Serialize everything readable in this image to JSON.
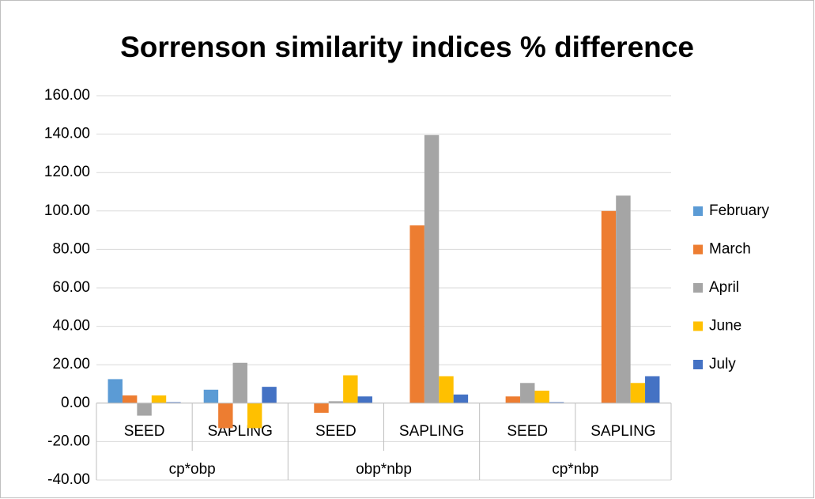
{
  "chart_data": {
    "type": "bar",
    "title": "Sorrenson similarity indices % difference",
    "categories": [
      "SEED",
      "SAPLING",
      "SEED",
      "SAPLING",
      "SEED",
      "SAPLING"
    ],
    "groups": [
      "cp*obp",
      "obp*nbp",
      "cp*nbp"
    ],
    "series": [
      {
        "name": "February",
        "color": "#5b9bd5",
        "values": [
          12.5,
          7,
          0,
          0,
          0,
          0
        ]
      },
      {
        "name": "March",
        "color": "#ed7d31",
        "values": [
          4,
          -13,
          -5,
          92.5,
          3.5,
          100
        ]
      },
      {
        "name": "April",
        "color": "#a5a5a5",
        "values": [
          -6.5,
          21,
          1,
          139.5,
          10.5,
          108
        ]
      },
      {
        "name": "June",
        "color": "#ffc000",
        "values": [
          4,
          -13,
          14.5,
          14,
          6.5,
          10.5
        ]
      },
      {
        "name": "July",
        "color": "#4472c4",
        "values": [
          0.5,
          8.5,
          3.5,
          4.5,
          0.5,
          14
        ]
      }
    ],
    "ylim": [
      -40,
      160
    ],
    "yticks": [
      {
        "value": -40,
        "label": "-40.00"
      },
      {
        "value": -20,
        "label": "-20.00"
      },
      {
        "value": 0,
        "label": "0.00"
      },
      {
        "value": 20,
        "label": "20.00"
      },
      {
        "value": 40,
        "label": "40.00"
      },
      {
        "value": 60,
        "label": "60.00"
      },
      {
        "value": 80,
        "label": "80.00"
      },
      {
        "value": 100,
        "label": "100.00"
      },
      {
        "value": 120,
        "label": "120.00"
      },
      {
        "value": 140,
        "label": "140.00"
      },
      {
        "value": 160,
        "label": "160.00"
      }
    ],
    "grid": true,
    "legend": "right"
  }
}
